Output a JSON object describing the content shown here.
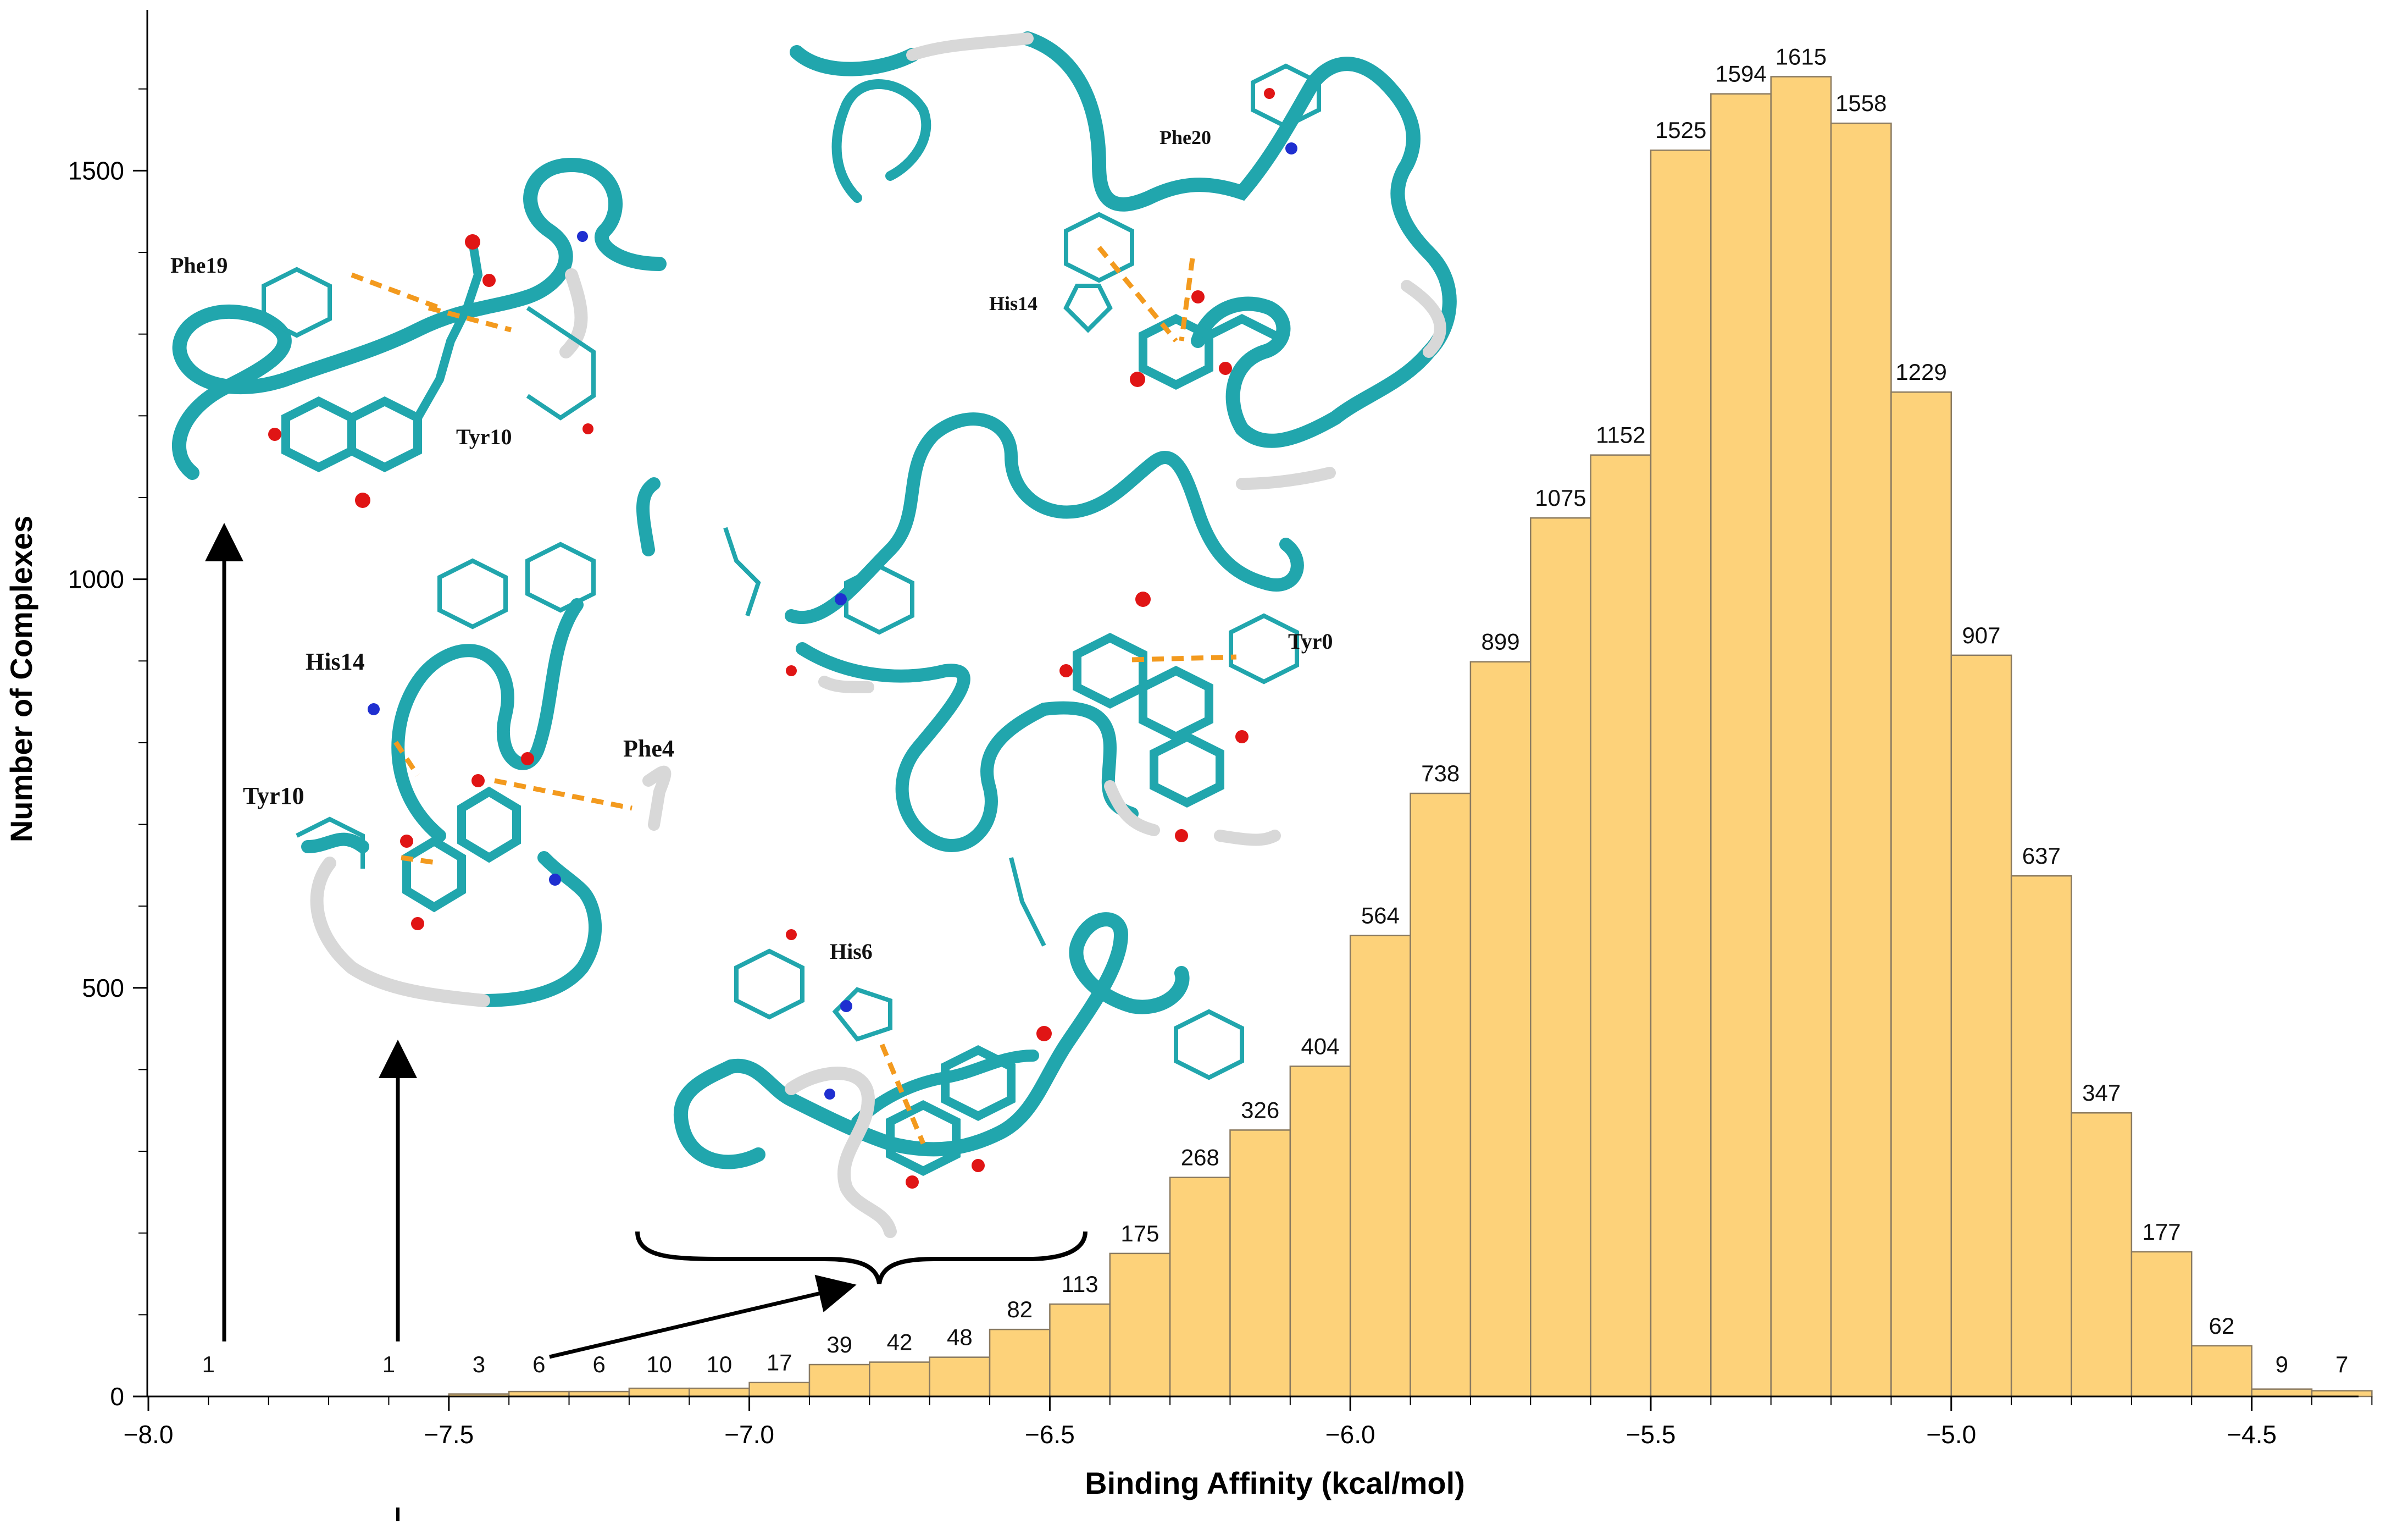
{
  "chart_data": {
    "type": "bar",
    "title": "",
    "xlabel": "Binding Affinity (kcal/mol)",
    "ylabel": "Number of Complexes",
    "xlim": [
      -8.02,
      -4.22
    ],
    "ylim": [
      0,
      1700
    ],
    "xticks": [
      -8.0,
      -7.5,
      -7.0,
      -6.5,
      -6.0,
      -5.5,
      -5.0,
      -4.5
    ],
    "xtick_labels": [
      "−8.0",
      "−7.5",
      "−7.0",
      "−6.5",
      "−6.0",
      "−5.5",
      "−5.0",
      "−4.5"
    ],
    "yticks": [
      0,
      500,
      1000,
      1500
    ],
    "ytick_labels": [
      "0",
      "500",
      "1000",
      "1500"
    ],
    "bin_width": 0.1,
    "bins": [
      {
        "left": -7.5,
        "value": 3
      },
      {
        "left": -7.4,
        "value": 6
      },
      {
        "left": -7.3,
        "value": 6
      },
      {
        "left": -7.2,
        "value": 10
      },
      {
        "left": -7.1,
        "value": 10
      },
      {
        "left": -7.0,
        "value": 17
      },
      {
        "left": -6.9,
        "value": 39
      },
      {
        "left": -6.8,
        "value": 42
      },
      {
        "left": -6.7,
        "value": 48
      },
      {
        "left": -6.6,
        "value": 82
      },
      {
        "left": -6.5,
        "value": 113
      },
      {
        "left": -6.4,
        "value": 175
      },
      {
        "left": -6.3,
        "value": 268
      },
      {
        "left": -6.2,
        "value": 326
      },
      {
        "left": -6.1,
        "value": 404
      },
      {
        "left": -6.0,
        "value": 564
      },
      {
        "left": -5.9,
        "value": 738
      },
      {
        "left": -5.8,
        "value": 899
      },
      {
        "left": -5.7,
        "value": 1075
      },
      {
        "left": -5.6,
        "value": 1152
      },
      {
        "left": -5.5,
        "value": 1525
      },
      {
        "left": -5.4,
        "value": 1594
      },
      {
        "left": -5.3,
        "value": 1615
      },
      {
        "left": -5.2,
        "value": 1558
      },
      {
        "left": -5.1,
        "value": 1229
      },
      {
        "left": -5.0,
        "value": 907
      },
      {
        "left": -4.9,
        "value": 637
      },
      {
        "left": -4.8,
        "value": 347
      },
      {
        "left": -4.7,
        "value": 177
      },
      {
        "left": -4.6,
        "value": 62
      },
      {
        "left": -4.5,
        "value": 9
      },
      {
        "left": -4.4,
        "value": 7
      }
    ],
    "outliers": [
      {
        "x": -7.9,
        "value": 1,
        "label": "1"
      },
      {
        "x": -7.6,
        "value": 1,
        "label": "1"
      }
    ],
    "bar_color": "#fdd27a",
    "bar_edge_color": "#8a7a60",
    "grid": false,
    "legend": "none"
  },
  "insets": {
    "ribbon_color": "#21a6ad",
    "coil_color": "#d8d8d8",
    "hbond_color": "#f39a1e",
    "oxygen_color": "#e01515",
    "nitrogen_color": "#1f2fd0",
    "labels": {
      "phe19": "Phe19",
      "tyr10_top": "Tyr10",
      "phe20": "Phe20",
      "his14_top": "His14",
      "his14_mid": "His14",
      "tyr10_mid": "Tyr10",
      "phe4": "Phe4",
      "tyr0": "Tyr0",
      "his6": "His6"
    }
  }
}
